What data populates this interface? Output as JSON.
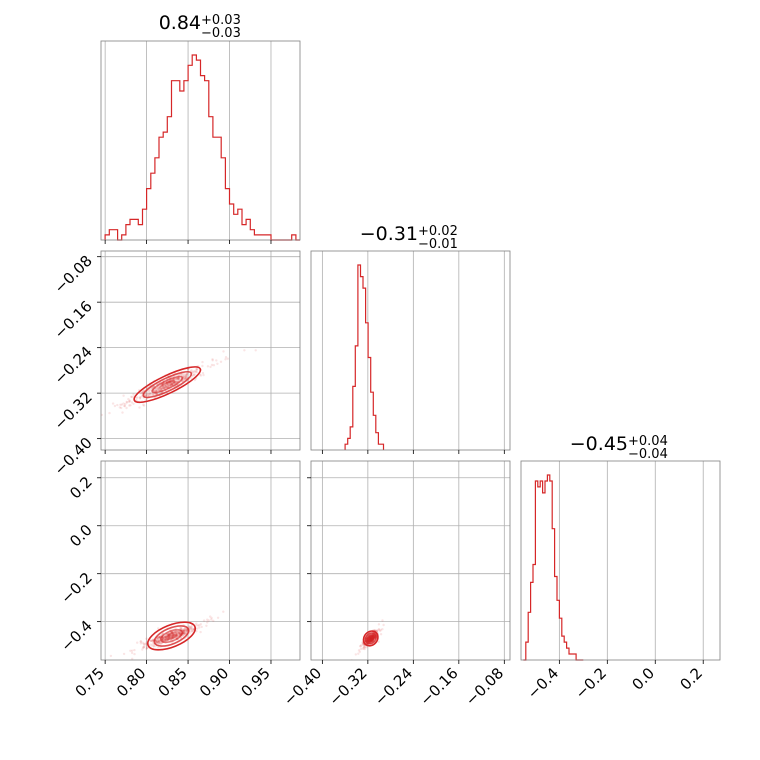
{
  "chart_data": {
    "type": "corner",
    "color": "#d62728",
    "parameters": [
      {
        "title_value": "0.84",
        "title_plus": "+0.03",
        "title_minus": "−0.03",
        "range": [
          0.745,
          0.985
        ],
        "ticks": [
          0.75,
          0.8,
          0.85,
          0.9,
          0.95
        ],
        "tick_labels": [
          "0.75",
          "0.80",
          "0.85",
          "0.90",
          "0.95"
        ],
        "hist": {
          "bin_start": 0.75,
          "bin_width": 0.005,
          "counts": [
            1,
            2,
            2,
            0,
            1,
            3,
            4,
            4,
            3,
            6,
            10,
            13,
            16,
            20,
            21,
            24,
            31,
            31,
            29,
            31,
            34,
            36,
            35,
            32,
            31,
            24,
            20,
            20,
            16,
            10,
            7,
            5,
            6,
            3,
            4,
            2,
            1,
            1,
            1,
            1,
            0,
            0,
            0,
            0,
            0,
            1,
            0
          ]
        }
      },
      {
        "title_value": "−0.31",
        "title_plus": "+0.02",
        "title_minus": "−0.01",
        "range": [
          -0.42,
          -0.07
        ],
        "ticks": [
          -0.4,
          -0.32,
          -0.24,
          -0.16,
          -0.08
        ],
        "tick_labels": [
          "−0.40",
          "−0.32",
          "−0.24",
          "−0.16",
          "−0.08"
        ],
        "hist": {
          "bin_start": -0.36,
          "bin_width": 0.0045,
          "counts": [
            1,
            2,
            4,
            11,
            18,
            32,
            30,
            28,
            22,
            16,
            10,
            6,
            3,
            1,
            1
          ]
        }
      },
      {
        "title_value": "−0.45",
        "title_plus": "+0.04",
        "title_minus": "−0.04",
        "range": [
          -0.56,
          0.27
        ],
        "ticks": [
          -0.4,
          -0.2,
          0.0,
          0.2
        ],
        "tick_labels": [
          "−0.4",
          "−0.2",
          "0.0",
          "0.2"
        ],
        "hist": {
          "bin_start": -0.55,
          "bin_width": 0.01,
          "counts": [
            0,
            3,
            8,
            13,
            16,
            30,
            29,
            30,
            28,
            30,
            31,
            30,
            22,
            14,
            10,
            7,
            4,
            3,
            2,
            1,
            1,
            1,
            0,
            0,
            0
          ]
        }
      }
    ],
    "pairs": [
      {
        "row": 1,
        "col": 0,
        "center": [
          0.825,
          -0.305
        ],
        "direction": [
          0.05,
          0.035
        ],
        "spread_along": 0.022,
        "spread_across": 0.005,
        "extent": [
          0.77,
          0.94
        ]
      },
      {
        "row": 2,
        "col": 0,
        "center": [
          0.83,
          -0.46
        ],
        "direction": [
          0.05,
          0.07
        ],
        "spread_along": 0.022,
        "spread_across": 0.006,
        "extent": [
          0.77,
          0.93
        ]
      },
      {
        "row": 2,
        "col": 1,
        "center": [
          -0.315,
          -0.47
        ],
        "direction": [
          0.03,
          0.08
        ],
        "spread_along": 0.012,
        "spread_across": 0.004,
        "extent": [
          -0.335,
          -0.27
        ]
      }
    ]
  }
}
